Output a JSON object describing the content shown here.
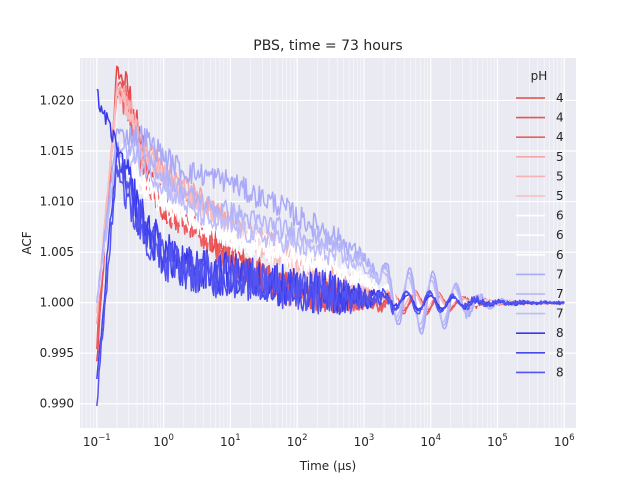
{
  "chart_data": {
    "type": "line",
    "title": "PBS, time = 73 hours",
    "xlabel": "Time (μs)",
    "ylabel": "ACF",
    "xscale": "log",
    "xlim": [
      0.056,
      1500000
    ],
    "ylim": [
      0.9876,
      1.0242
    ],
    "x_ticks": [
      {
        "value": 0.1,
        "base": "10",
        "exp": "−1"
      },
      {
        "value": 1,
        "base": "10",
        "exp": "0"
      },
      {
        "value": 10,
        "base": "10",
        "exp": "1"
      },
      {
        "value": 100,
        "base": "10",
        "exp": "2"
      },
      {
        "value": 1000,
        "base": "10",
        "exp": "3"
      },
      {
        "value": 10000,
        "base": "10",
        "exp": "4"
      },
      {
        "value": 100000,
        "base": "10",
        "exp": "5"
      },
      {
        "value": 1000000,
        "base": "10",
        "exp": "6"
      }
    ],
    "y_ticks": [
      {
        "value": 0.99,
        "label": "0.990"
      },
      {
        "value": 0.995,
        "label": "0.995"
      },
      {
        "value": 1.0,
        "label": "1.000"
      },
      {
        "value": 1.005,
        "label": "1.005"
      },
      {
        "value": 1.01,
        "label": "1.010"
      },
      {
        "value": 1.015,
        "label": "1.015"
      },
      {
        "value": 1.02,
        "label": "1.020"
      }
    ],
    "grid": true,
    "legend": {
      "title": "pH",
      "position": "upper right"
    },
    "series": [
      {
        "name": "4",
        "color": "#e8474a",
        "noise": 0.0016,
        "points": [
          [
            0.1,
            0.994
          ],
          [
            0.2,
            1.023
          ],
          [
            0.3,
            1.021
          ],
          [
            0.45,
            1.016
          ],
          [
            0.7,
            1.012
          ],
          [
            1,
            1.0095
          ],
          [
            2,
            1.009
          ],
          [
            3,
            1.0078
          ],
          [
            5,
            1.0065
          ],
          [
            10,
            1.005
          ],
          [
            20,
            1.0035
          ],
          [
            50,
            1.002
          ],
          [
            100,
            1.0012
          ],
          [
            300,
            1.0006
          ],
          [
            1000,
            1.0003
          ],
          [
            3000,
            1.0001
          ],
          [
            10000,
            1.0
          ],
          [
            100000,
            1.0
          ],
          [
            1000000,
            1.0
          ]
        ]
      },
      {
        "name": "4",
        "color": "#ea5356",
        "noise": 0.0015,
        "points": [
          [
            0.1,
            0.995
          ],
          [
            0.2,
            1.022
          ],
          [
            0.3,
            1.02
          ],
          [
            0.45,
            1.015
          ],
          [
            0.7,
            1.011
          ],
          [
            1,
            1.009
          ],
          [
            2,
            1.0085
          ],
          [
            3,
            1.0075
          ],
          [
            5,
            1.006
          ],
          [
            10,
            1.0045
          ],
          [
            20,
            1.003
          ],
          [
            50,
            1.0018
          ],
          [
            100,
            1.001
          ],
          [
            300,
            1.0005
          ],
          [
            1000,
            1.0002
          ],
          [
            3000,
            1.0001
          ],
          [
            10000,
            1.0
          ],
          [
            100000,
            1.0
          ],
          [
            1000000,
            1.0
          ]
        ]
      },
      {
        "name": "4",
        "color": "#ec5e61",
        "noise": 0.0016,
        "points": [
          [
            0.1,
            0.996
          ],
          [
            0.2,
            1.021
          ],
          [
            0.3,
            1.0195
          ],
          [
            0.45,
            1.0145
          ],
          [
            0.7,
            1.0105
          ],
          [
            1,
            1.0088
          ],
          [
            2,
            1.0082
          ],
          [
            3,
            1.0072
          ],
          [
            5,
            1.0058
          ],
          [
            10,
            1.0043
          ],
          [
            20,
            1.003
          ],
          [
            50,
            1.0017
          ],
          [
            100,
            1.001
          ],
          [
            300,
            1.0005
          ],
          [
            1000,
            1.0002
          ],
          [
            3000,
            1.0
          ],
          [
            10000,
            1.0
          ],
          [
            100000,
            1.0
          ],
          [
            1000000,
            1.0
          ]
        ]
      },
      {
        "name": "5",
        "color": "#f4a6a8",
        "noise": 0.0012,
        "points": [
          [
            0.1,
            0.998
          ],
          [
            0.2,
            1.0215
          ],
          [
            0.3,
            1.02
          ],
          [
            0.45,
            1.016
          ],
          [
            0.7,
            1.0145
          ],
          [
            1,
            1.013
          ],
          [
            2,
            1.0115
          ],
          [
            5,
            1.0095
          ],
          [
            10,
            1.008
          ],
          [
            20,
            1.007
          ],
          [
            50,
            1.0055
          ],
          [
            100,
            1.0045
          ],
          [
            300,
            1.003
          ],
          [
            1000,
            1.0015
          ],
          [
            3000,
            1.0004
          ],
          [
            10000,
            1.0002
          ],
          [
            100000,
            1.0
          ],
          [
            1000000,
            1.0
          ]
        ]
      },
      {
        "name": "5",
        "color": "#f6b2b4",
        "noise": 0.0012,
        "points": [
          [
            0.1,
            0.999
          ],
          [
            0.2,
            1.021
          ],
          [
            0.3,
            1.0195
          ],
          [
            0.45,
            1.0155
          ],
          [
            0.7,
            1.014
          ],
          [
            1,
            1.0125
          ],
          [
            2,
            1.011
          ],
          [
            5,
            1.009
          ],
          [
            10,
            1.0075
          ],
          [
            20,
            1.0065
          ],
          [
            50,
            1.005
          ],
          [
            100,
            1.004
          ],
          [
            300,
            1.0028
          ],
          [
            1000,
            1.0014
          ],
          [
            3000,
            1.0004
          ],
          [
            10000,
            1.0002
          ],
          [
            100000,
            1.0
          ],
          [
            1000000,
            1.0
          ]
        ]
      },
      {
        "name": "5",
        "color": "#f8bebf",
        "noise": 0.0012,
        "points": [
          [
            0.1,
            0.999
          ],
          [
            0.2,
            1.0205
          ],
          [
            0.3,
            1.019
          ],
          [
            0.45,
            1.015
          ],
          [
            0.7,
            1.0135
          ],
          [
            1,
            1.012
          ],
          [
            2,
            1.0105
          ],
          [
            5,
            1.0088
          ],
          [
            10,
            1.0072
          ],
          [
            20,
            1.0062
          ],
          [
            50,
            1.0048
          ],
          [
            100,
            1.0038
          ],
          [
            300,
            1.0026
          ],
          [
            1000,
            1.0013
          ],
          [
            3000,
            1.0003
          ],
          [
            10000,
            1.0002
          ],
          [
            100000,
            1.0
          ],
          [
            1000000,
            1.0
          ]
        ]
      },
      {
        "name": "6",
        "color": "#ffffff",
        "noise": 0.0012,
        "points": [
          [
            0.1,
            1.0
          ],
          [
            0.2,
            1.016
          ],
          [
            0.4,
            1.013
          ],
          [
            1,
            1.0105
          ],
          [
            3,
            1.0085
          ],
          [
            10,
            1.007
          ],
          [
            30,
            1.006
          ],
          [
            100,
            1.005
          ],
          [
            300,
            1.004
          ],
          [
            1000,
            1.0025
          ],
          [
            3000,
            1.0005
          ],
          [
            10000,
            1.0
          ],
          [
            100000,
            1.0
          ],
          [
            1000000,
            1.0
          ]
        ]
      },
      {
        "name": "6",
        "color": "#ffffff",
        "noise": 0.0012,
        "points": [
          [
            0.1,
            1.0
          ],
          [
            0.2,
            1.015
          ],
          [
            0.4,
            1.0125
          ],
          [
            1,
            1.01
          ],
          [
            3,
            1.008
          ],
          [
            10,
            1.0066
          ],
          [
            30,
            1.0056
          ],
          [
            100,
            1.0046
          ],
          [
            300,
            1.0036
          ],
          [
            1000,
            1.0022
          ],
          [
            3000,
            1.0004
          ],
          [
            10000,
            1.0
          ],
          [
            100000,
            1.0
          ],
          [
            1000000,
            1.0
          ]
        ]
      },
      {
        "name": "6",
        "color": "#ffffff",
        "noise": 0.0012,
        "points": [
          [
            0.1,
            1.0
          ],
          [
            0.2,
            1.0145
          ],
          [
            0.4,
            1.012
          ],
          [
            1,
            1.0095
          ],
          [
            3,
            1.0077
          ],
          [
            10,
            1.0063
          ],
          [
            30,
            1.0053
          ],
          [
            100,
            1.0043
          ],
          [
            300,
            1.0033
          ],
          [
            1000,
            1.002
          ],
          [
            3000,
            1.0003
          ],
          [
            10000,
            1.0
          ],
          [
            100000,
            1.0
          ],
          [
            1000000,
            1.0
          ]
        ]
      },
      {
        "name": "7",
        "color": "#a9a9f8",
        "noise": 0.0012,
        "osc": 0.0028,
        "points": [
          [
            0.1,
            1.0
          ],
          [
            0.2,
            1.017
          ],
          [
            0.3,
            1.0165
          ],
          [
            0.5,
            1.0165
          ],
          [
            1,
            1.0145
          ],
          [
            2,
            1.013
          ],
          [
            5,
            1.0125
          ],
          [
            10,
            1.012
          ],
          [
            20,
            1.0108
          ],
          [
            50,
            1.0098
          ],
          [
            100,
            1.0085
          ],
          [
            300,
            1.007
          ],
          [
            1000,
            1.0045
          ],
          [
            3000,
            1.0005
          ],
          [
            10000,
            1.0
          ],
          [
            100000,
            1.0
          ],
          [
            1000000,
            1.0
          ]
        ]
      },
      {
        "name": "7",
        "color": "#b3b3f9",
        "noise": 0.0011,
        "osc": 0.0024,
        "points": [
          [
            0.1,
            1.0
          ],
          [
            0.2,
            1.0155
          ],
          [
            0.3,
            1.015
          ],
          [
            0.5,
            1.0145
          ],
          [
            1,
            1.0125
          ],
          [
            2,
            1.011
          ],
          [
            5,
            1.0095
          ],
          [
            10,
            1.009
          ],
          [
            20,
            1.0082
          ],
          [
            50,
            1.0075
          ],
          [
            100,
            1.0068
          ],
          [
            300,
            1.006
          ],
          [
            1000,
            1.0042
          ],
          [
            3000,
            1.0005
          ],
          [
            10000,
            1.0
          ],
          [
            100000,
            1.0
          ],
          [
            1000000,
            1.0
          ]
        ]
      },
      {
        "name": "7",
        "color": "#bdbdfa",
        "noise": 0.0011,
        "osc": 0.002,
        "points": [
          [
            0.1,
            1.0
          ],
          [
            0.2,
            1.0145
          ],
          [
            0.3,
            1.014
          ],
          [
            0.5,
            1.0135
          ],
          [
            1,
            1.0115
          ],
          [
            2,
            1.0098
          ],
          [
            5,
            1.008
          ],
          [
            10,
            1.0075
          ],
          [
            20,
            1.0068
          ],
          [
            50,
            1.0062
          ],
          [
            100,
            1.0056
          ],
          [
            300,
            1.0048
          ],
          [
            1000,
            1.0035
          ],
          [
            3000,
            1.0005
          ],
          [
            10000,
            1.0
          ],
          [
            100000,
            1.0
          ],
          [
            1000000,
            1.0
          ]
        ]
      },
      {
        "name": "8",
        "color": "#3939ec",
        "noise": 0.0022,
        "points": [
          [
            0.1,
            1.0205
          ],
          [
            0.15,
            1.0175
          ],
          [
            0.2,
            1.0155
          ],
          [
            0.3,
            1.012
          ],
          [
            0.5,
            1.008
          ],
          [
            1,
            1.005
          ],
          [
            2,
            1.0035
          ],
          [
            5,
            1.003
          ],
          [
            10,
            1.0028
          ],
          [
            30,
            1.0022
          ],
          [
            100,
            1.0015
          ],
          [
            300,
            1.001
          ],
          [
            1000,
            1.0005
          ],
          [
            3000,
            1.0002
          ],
          [
            10000,
            1.0
          ],
          [
            100000,
            1.0
          ],
          [
            1000000,
            1.0
          ]
        ]
      },
      {
        "name": "8",
        "color": "#4747ee",
        "noise": 0.0022,
        "points": [
          [
            0.1,
            0.992
          ],
          [
            0.15,
            1.006
          ],
          [
            0.2,
            1.015
          ],
          [
            0.3,
            1.011
          ],
          [
            0.5,
            1.0075
          ],
          [
            1,
            1.0048
          ],
          [
            2,
            1.0035
          ],
          [
            5,
            1.0028
          ],
          [
            10,
            1.0026
          ],
          [
            30,
            1.002
          ],
          [
            100,
            1.0014
          ],
          [
            300,
            1.0009
          ],
          [
            1000,
            1.0004
          ],
          [
            3000,
            1.0002
          ],
          [
            10000,
            1.0
          ],
          [
            100000,
            1.0
          ],
          [
            1000000,
            1.0
          ]
        ]
      },
      {
        "name": "8",
        "color": "#5454f0",
        "noise": 0.0022,
        "points": [
          [
            0.1,
            0.99
          ],
          [
            0.15,
            1.004
          ],
          [
            0.2,
            1.0135
          ],
          [
            0.3,
            1.01
          ],
          [
            0.5,
            1.007
          ],
          [
            1,
            1.0045
          ],
          [
            2,
            1.0033
          ],
          [
            5,
            1.0027
          ],
          [
            10,
            1.0025
          ],
          [
            30,
            1.0019
          ],
          [
            100,
            1.0013
          ],
          [
            300,
            1.0008
          ],
          [
            1000,
            1.0004
          ],
          [
            3000,
            1.0001
          ],
          [
            10000,
            1.0
          ],
          [
            100000,
            1.0
          ],
          [
            1000000,
            1.0
          ]
        ]
      }
    ]
  }
}
